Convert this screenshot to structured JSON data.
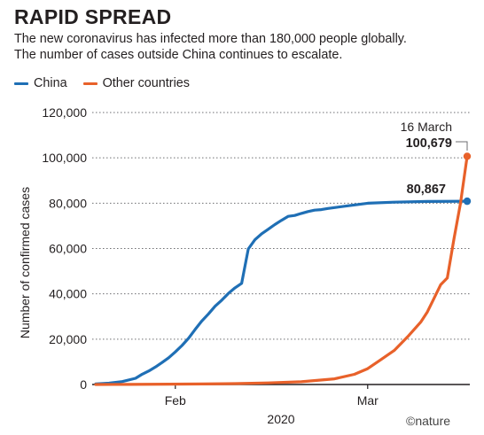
{
  "header": {
    "title": "RAPID SPREAD",
    "subtitle_line1": "The new coronavirus has infected more than 180,000 people globally.",
    "subtitle_line2": "The number of cases outside China continues to escalate."
  },
  "colors": {
    "china": "#1f6fb5",
    "other": "#e8612a",
    "text": "#231f20",
    "grid": "#6d6e71"
  },
  "credit": "©nature",
  "chart_data": {
    "type": "line",
    "title": "RAPID SPREAD",
    "xlabel": "2020",
    "ylabel": "Number of confirmed cases",
    "ylim": [
      0,
      120000
    ],
    "yticks": [
      0,
      20000,
      40000,
      60000,
      80000,
      100000,
      120000
    ],
    "ytick_labels": [
      "0",
      "20,000",
      "40,000",
      "60,000",
      "80,000",
      "100,000",
      "120,000"
    ],
    "xticks": [
      {
        "date": "2020-02-01",
        "label": "Feb"
      },
      {
        "date": "2020-03-01",
        "label": "Mar"
      }
    ],
    "xlim": [
      "2020-01-20",
      "2020-03-16"
    ],
    "grid": "horizontal dotted",
    "legend": "top-left",
    "series": [
      {
        "name": "China",
        "x": [
          "2020-01-20",
          "2020-01-22",
          "2020-01-24",
          "2020-01-26",
          "2020-01-27",
          "2020-01-28",
          "2020-01-29",
          "2020-01-30",
          "2020-01-31",
          "2020-02-01",
          "2020-02-02",
          "2020-02-03",
          "2020-02-04",
          "2020-02-05",
          "2020-02-06",
          "2020-02-07",
          "2020-02-08",
          "2020-02-09",
          "2020-02-10",
          "2020-02-11",
          "2020-02-12",
          "2020-02-13",
          "2020-02-14",
          "2020-02-15",
          "2020-02-16",
          "2020-02-17",
          "2020-02-18",
          "2020-02-19",
          "2020-02-20",
          "2020-02-21",
          "2020-02-22",
          "2020-02-23",
          "2020-02-24",
          "2020-02-25",
          "2020-02-27",
          "2020-03-01",
          "2020-03-05",
          "2020-03-10",
          "2020-03-16"
        ],
        "values": [
          278,
          571,
          1297,
          2744,
          4515,
          5974,
          7711,
          9692,
          11791,
          14380,
          17205,
          20438,
          24324,
          28018,
          31161,
          34546,
          37198,
          40171,
          42638,
          44653,
          59804,
          63851,
          66492,
          68500,
          70548,
          72436,
          74185,
          74576,
          75465,
          76288,
          76936,
          77150,
          77658,
          78064,
          78824,
          79968,
          80430,
          80757,
          80867
        ]
      },
      {
        "name": "Other countries",
        "x": [
          "2020-01-20",
          "2020-01-25",
          "2020-01-31",
          "2020-02-05",
          "2020-02-10",
          "2020-02-15",
          "2020-02-20",
          "2020-02-25",
          "2020-02-28",
          "2020-03-01",
          "2020-03-03",
          "2020-03-05",
          "2020-03-07",
          "2020-03-09",
          "2020-03-10",
          "2020-03-11",
          "2020-03-12",
          "2020-03-13",
          "2020-03-14",
          "2020-03-15",
          "2020-03-16"
        ],
        "values": [
          0,
          50,
          150,
          250,
          400,
          700,
          1200,
          2500,
          4500,
          7000,
          11000,
          15000,
          21000,
          27500,
          32000,
          38000,
          44000,
          47000,
          64000,
          80000,
          100679
        ]
      }
    ],
    "annotations": {
      "date_label": "16 March",
      "other_end_label": "100,679",
      "china_end_label": "80,867"
    }
  }
}
